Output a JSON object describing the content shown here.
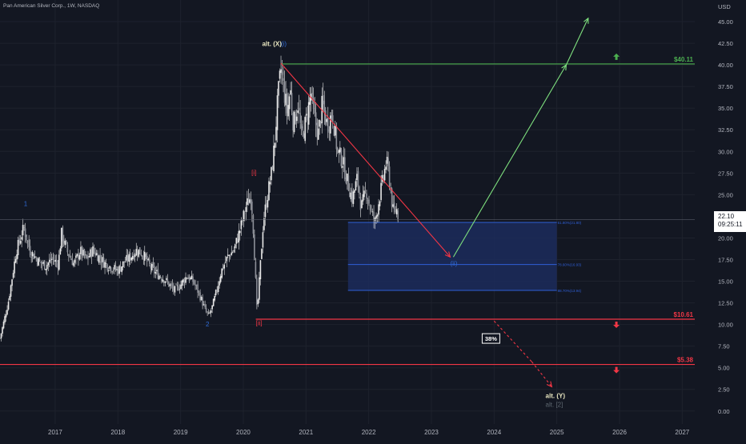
{
  "symbol_label": "Pan American Silver Corp., 1W, NASDAQ",
  "colors": {
    "background": "#131722",
    "grid": "#1e222d",
    "candles": "#e8e8e8",
    "target_up": "#4caf50",
    "target_down": "#f23645",
    "zone_fill": "#1c2c5c",
    "zone_line": "#2f5fd6",
    "wave_blue": "#2f6bd6",
    "wave_red": "#f23645",
    "wave_white": "#e8e6c0",
    "wave_grey": "#5d6770"
  },
  "price_box": {
    "price": "22.10",
    "countdown": "09:25:11"
  },
  "chart_data": {
    "type": "candlestick",
    "currency": "USD",
    "x_ticks": [
      "2017",
      "2018",
      "2019",
      "2020",
      "2021",
      "2022",
      "2023",
      "2024",
      "2025",
      "2026",
      "2027"
    ],
    "y_ticks": [
      "45.00",
      "42.50",
      "40.00",
      "37.50",
      "35.00",
      "32.50",
      "30.00",
      "27.50",
      "25.00",
      "20.00",
      "17.50",
      "15.00",
      "12.50",
      "10.00",
      "7.50",
      "5.00",
      "2.50",
      "0.00"
    ],
    "ylim": [
      -1.5,
      47.5
    ],
    "xlim": [
      2016.12,
      2027.2
    ],
    "grid": true,
    "last_price": 22.1,
    "price_path": [
      [
        2016.12,
        8.4
      ],
      [
        2016.25,
        12.5
      ],
      [
        2016.38,
        18.5
      ],
      [
        2016.5,
        21.2
      ],
      [
        2016.6,
        18.5
      ],
      [
        2016.75,
        17.2
      ],
      [
        2016.85,
        16.8
      ],
      [
        2016.95,
        17.6
      ],
      [
        2017.05,
        17.0
      ],
      [
        2017.1,
        20.5
      ],
      [
        2017.2,
        18.3
      ],
      [
        2017.3,
        17.0
      ],
      [
        2017.4,
        18.5
      ],
      [
        2017.5,
        17.5
      ],
      [
        2017.6,
        18.6
      ],
      [
        2017.7,
        17.8
      ],
      [
        2017.8,
        17.0
      ],
      [
        2017.9,
        16.6
      ],
      [
        2018.0,
        16.2
      ],
      [
        2018.1,
        17.2
      ],
      [
        2018.2,
        17.8
      ],
      [
        2018.3,
        18.6
      ],
      [
        2018.4,
        18.2
      ],
      [
        2018.5,
        16.8
      ],
      [
        2018.6,
        16.0
      ],
      [
        2018.75,
        15.2
      ],
      [
        2018.9,
        13.9
      ],
      [
        2019.0,
        14.6
      ],
      [
        2019.1,
        15.6
      ],
      [
        2019.2,
        15.0
      ],
      [
        2019.3,
        13.5
      ],
      [
        2019.4,
        11.5
      ],
      [
        2019.45,
        11.0
      ],
      [
        2019.5,
        11.9
      ],
      [
        2019.55,
        13.2
      ],
      [
        2019.65,
        16.2
      ],
      [
        2019.75,
        17.8
      ],
      [
        2019.85,
        18.6
      ],
      [
        2019.95,
        21.0
      ],
      [
        2020.05,
        23.8
      ],
      [
        2020.12,
        24.8
      ],
      [
        2020.15,
        22.5
      ],
      [
        2020.2,
        14.5
      ],
      [
        2020.22,
        11.2
      ],
      [
        2020.26,
        15.5
      ],
      [
        2020.32,
        22.0
      ],
      [
        2020.4,
        25.5
      ],
      [
        2020.45,
        27.5
      ],
      [
        2020.5,
        31.0
      ],
      [
        2020.55,
        36.0
      ],
      [
        2020.6,
        39.5
      ],
      [
        2020.64,
        37.5
      ],
      [
        2020.7,
        34.5
      ],
      [
        2020.75,
        37.2
      ],
      [
        2020.8,
        33.0
      ],
      [
        2020.87,
        35.5
      ],
      [
        2020.93,
        31.5
      ],
      [
        2021.0,
        33.5
      ],
      [
        2021.08,
        36.8
      ],
      [
        2021.12,
        34.2
      ],
      [
        2021.2,
        32.0
      ],
      [
        2021.26,
        35.5
      ],
      [
        2021.34,
        33.0
      ],
      [
        2021.42,
        34.5
      ],
      [
        2021.5,
        30.0
      ],
      [
        2021.58,
        29.0
      ],
      [
        2021.66,
        26.5
      ],
      [
        2021.74,
        24.5
      ],
      [
        2021.82,
        27.0
      ],
      [
        2021.88,
        23.5
      ],
      [
        2021.96,
        25.5
      ],
      [
        2022.04,
        23.0
      ],
      [
        2022.1,
        21.8
      ],
      [
        2022.16,
        24.2
      ],
      [
        2022.22,
        26.5
      ],
      [
        2022.28,
        28.8
      ],
      [
        2022.32,
        27.5
      ],
      [
        2022.36,
        24.8
      ],
      [
        2022.4,
        22.5
      ],
      [
        2022.44,
        23.5
      ],
      [
        2022.48,
        22.1
      ]
    ],
    "target_lines": [
      {
        "price": 40.11,
        "label": "$40.11",
        "direction": "up"
      },
      {
        "price": 10.61,
        "label": "$10.61",
        "direction": "down"
      },
      {
        "price": 5.38,
        "label": "$5.38",
        "direction": "down"
      }
    ],
    "zone": {
      "x": [
        2021.67,
        2025.0
      ],
      "top": 21.8,
      "bottom": 13.9,
      "levels": [
        {
          "price": 21.8,
          "label": "61.80%(21.80)"
        },
        {
          "price": 16.93,
          "label": "78.60%(16.93)"
        },
        {
          "price": 13.94,
          "label": "88.70%(13.94)"
        }
      ]
    },
    "paths": [
      {
        "kind": "down",
        "style": "solid",
        "points": [
          [
            2020.6,
            40.2
          ],
          [
            2023.3,
            17.8
          ]
        ]
      },
      {
        "kind": "up",
        "style": "solid",
        "points": [
          [
            2023.35,
            17.8
          ],
          [
            2025.15,
            40.0
          ]
        ]
      },
      {
        "kind": "up",
        "style": "solid",
        "points": [
          [
            2025.15,
            40.0
          ],
          [
            2025.5,
            45.4
          ]
        ]
      },
      {
        "kind": "down",
        "style": "dashed",
        "points": [
          [
            2024.0,
            10.4
          ],
          [
            2024.6,
            5.7
          ]
        ]
      },
      {
        "kind": "down",
        "style": "dashed",
        "points": [
          [
            2024.6,
            5.7
          ],
          [
            2024.92,
            2.8
          ]
        ]
      }
    ],
    "wave_labels": [
      {
        "text": "1",
        "x": 2016.5,
        "price": 23.7,
        "color": "wave_blue"
      },
      {
        "text": "2",
        "x": 2019.4,
        "price": 9.8,
        "color": "wave_blue"
      },
      {
        "text": "[i]",
        "x": 2020.13,
        "price": 27.3,
        "color": "wave_red"
      },
      {
        "text": "[ii]",
        "x": 2020.2,
        "price": 9.9,
        "color": "wave_red"
      },
      {
        "text": "alt. (X)",
        "x": 2020.3,
        "price": 42.2,
        "color": "wave_white"
      },
      {
        "text": "(i)",
        "x": 2020.6,
        "price": 42.2,
        "color": "wave_blue"
      },
      {
        "text": "(ii)",
        "x": 2023.3,
        "price": 16.8,
        "color": "wave_blue"
      },
      {
        "text": "alt. (Y)",
        "x": 2024.82,
        "price": 1.5,
        "color": "wave_white"
      },
      {
        "text": "alt. [2]",
        "x": 2024.82,
        "price": 0.5,
        "color": "wave_grey"
      }
    ],
    "probability_badge": {
      "text": "38%",
      "x": 2023.95,
      "price": 8.2
    }
  }
}
